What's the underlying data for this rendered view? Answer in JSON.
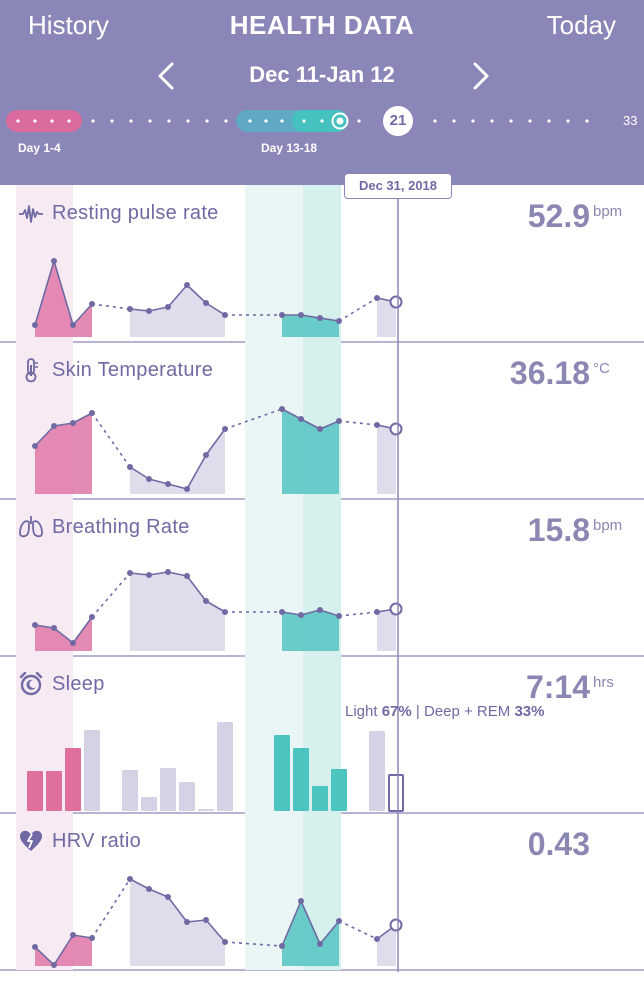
{
  "header": {
    "history_label": "History",
    "title": "HEALTH DATA",
    "today_label": "Today",
    "date_range": "Dec 11-Jan 12",
    "prev_icon": "chevron-left-icon",
    "next_icon": "chevron-right-icon"
  },
  "timeline": {
    "period1_label": "Day 1-4",
    "period2_label": "Day 13-18",
    "current_day": "21",
    "end_day": "33",
    "selected_date": "Dec 31, 2018"
  },
  "colors": {
    "header": "#8b86b8",
    "pink": "#d96b9e",
    "teal": "#45c2bf",
    "lavender": "#c9c6dd",
    "line": "#6f6aa3"
  },
  "panels": [
    {
      "id": "resting-pulse",
      "icon": "pulse-wave-icon",
      "title": "Resting pulse rate",
      "value": "52.9",
      "unit": "bpm"
    },
    {
      "id": "skin-temp",
      "icon": "thermometer-icon",
      "title": "Skin Temperature",
      "value": "36.18",
      "unit": "°C"
    },
    {
      "id": "breathing",
      "icon": "lungs-icon",
      "title": "Breathing Rate",
      "value": "15.8",
      "unit": "bpm"
    },
    {
      "id": "sleep",
      "icon": "alarm-clock-icon",
      "title": "Sleep",
      "value": "7:14",
      "unit": "hrs",
      "detail": {
        "light_label": "Light",
        "light_pct": "67%",
        "separator": " | ",
        "deep_label": "Deep + REM",
        "deep_pct": "33%"
      }
    },
    {
      "id": "hrv",
      "icon": "heart-bolt-icon",
      "title": "HRV ratio",
      "value": "0.43",
      "unit": ""
    }
  ]
}
